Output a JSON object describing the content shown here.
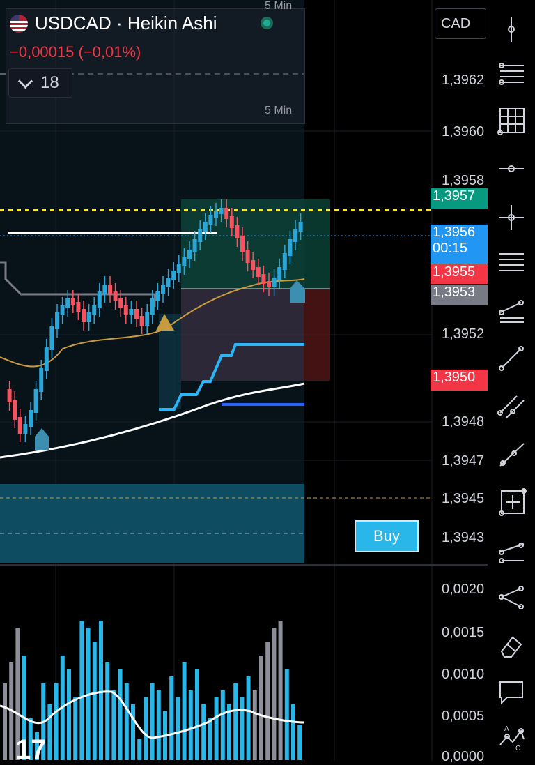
{
  "header": {
    "symbol": "USDCAD · Heikin Ashi",
    "change": "−0,00015 (−0,01%)",
    "interval_value": "18",
    "timeframe_top": "5 Min",
    "timeframe_bottom": "5 Min"
  },
  "currency_button": "CAD",
  "price_axis": {
    "labels": [
      "1,3962",
      "1,3960",
      "1,3958",
      "1,3952",
      "1,3948",
      "1,3947",
      "1,3945",
      "1,3943"
    ],
    "tags": [
      {
        "value": "1,3957",
        "color": "#089981"
      },
      {
        "value": "1,3956",
        "sub": "00:15",
        "color": "#2196f3"
      },
      {
        "value": "1,3955",
        "color": "#f23645"
      },
      {
        "value": "1,3953",
        "color": "#787b86"
      },
      {
        "value": "1,3950",
        "color": "#f23645"
      }
    ]
  },
  "oscillator_axis": {
    "labels": [
      "0,0020",
      "0,0015",
      "0,0010",
      "0,0005",
      "0,0000"
    ]
  },
  "buy_button": "Buy",
  "toolbar": {
    "tools": [
      "cursor-tool-icon",
      "fib-retracement-icon",
      "grid-icon",
      "horizontal-ray-icon",
      "crosshair-icon",
      "horizontal-lines-icon",
      "channel-icon",
      "trend-line-icon",
      "parallel-channel-icon",
      "ray-icon",
      "measure-icon",
      "extended-line-icon",
      "pitchfork-icon",
      "eraser-icon",
      "comment-icon",
      "pattern-icon"
    ]
  },
  "colors": {
    "bull": "#2ba6d9",
    "bear": "#f7525f",
    "ema_slow": "#ffffff",
    "ema_mid": "#c89b3c",
    "alert_line": "#f5e642",
    "supertrend": "#29b6f6",
    "base_line": "#2962ff"
  }
}
